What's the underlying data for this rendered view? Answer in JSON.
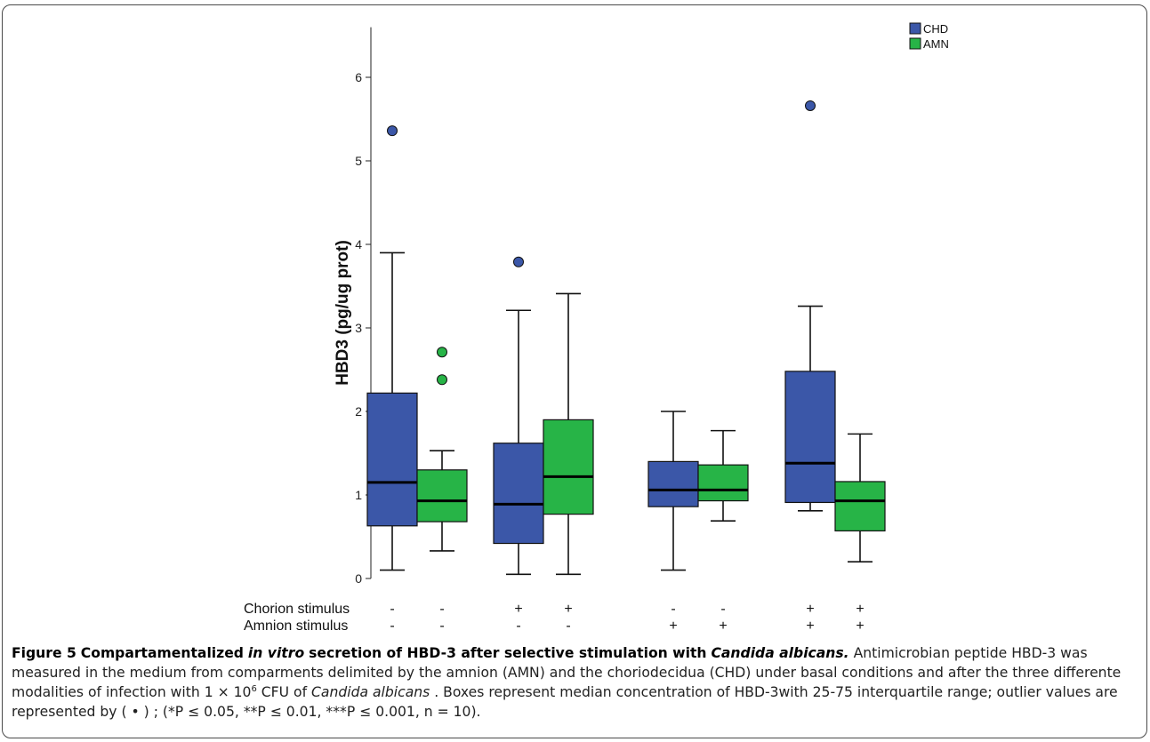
{
  "chart_data": {
    "type": "box",
    "ylabel": "HBD3 (pg/ug prot)",
    "ylim": [
      0,
      6.6
    ],
    "y_ticks": [
      0,
      1,
      2,
      3,
      4,
      5,
      6
    ],
    "grid": false,
    "legend_position": "top-right",
    "colors": {
      "CHD": "#3b57a8",
      "AMN": "#27b447"
    },
    "series": [
      {
        "name": "CHD"
      },
      {
        "name": "AMN"
      }
    ],
    "row_labels": [
      "Chorion stimulus",
      "Amnion stimulus"
    ],
    "groups": [
      {
        "chorion": "-",
        "amnion": "-",
        "boxes": [
          {
            "series": "CHD",
            "min": 0.1,
            "q1": 0.63,
            "median": 1.15,
            "q3": 2.22,
            "max": 3.9,
            "outliers": [
              5.36
            ]
          },
          {
            "series": "AMN",
            "min": 0.33,
            "q1": 0.68,
            "median": 0.93,
            "q3": 1.3,
            "max": 1.53,
            "outliers": [
              2.38,
              2.71
            ]
          }
        ]
      },
      {
        "chorion": "+",
        "amnion": "-",
        "boxes": [
          {
            "series": "CHD",
            "min": 0.05,
            "q1": 0.42,
            "median": 0.89,
            "q3": 1.62,
            "max": 3.21,
            "outliers": [
              3.79
            ]
          },
          {
            "series": "AMN",
            "min": 0.05,
            "q1": 0.77,
            "median": 1.22,
            "q3": 1.9,
            "max": 3.41,
            "outliers": []
          }
        ]
      },
      {
        "chorion": "-",
        "amnion": "+",
        "boxes": [
          {
            "series": "CHD",
            "min": 0.1,
            "q1": 0.86,
            "median": 1.06,
            "q3": 1.4,
            "max": 2.0,
            "outliers": []
          },
          {
            "series": "AMN",
            "min": 0.69,
            "q1": 0.93,
            "median": 1.06,
            "q3": 1.36,
            "max": 1.77,
            "outliers": []
          }
        ]
      },
      {
        "chorion": "+",
        "amnion": "+",
        "boxes": [
          {
            "series": "CHD",
            "min": 0.81,
            "q1": 0.91,
            "median": 1.38,
            "q3": 2.48,
            "max": 3.26,
            "outliers": [
              5.66
            ]
          },
          {
            "series": "AMN",
            "min": 0.2,
            "q1": 0.57,
            "median": 0.93,
            "q3": 1.16,
            "max": 1.73,
            "outliers": []
          }
        ]
      }
    ]
  },
  "caption": {
    "label": "Figure 5",
    "title_part1": "Compartamentalized",
    "title_italic1": "in vitro",
    "title_part2": "secretion of HBD-3 after selective stimulation with",
    "title_italic2": "Candida albicans.",
    "body_part1": "Antimicrobian peptide HBD-3 was measured in the medium from comparments delimited by the amnion (AMN) and the choriodecidua (CHD) under basal conditions and after the three differente modalities of infection with 1 × 10",
    "body_sup": "6",
    "body_part2": "CFU of",
    "body_italic": "Candida albicans",
    "body_part3": ". Boxes represent median concentration of HBD-3with 25-75 interquartile range; outlier values are represented by ( • ) ; (*P ≤ 0.05, **P ≤ 0.01, ***P ≤ 0.001, n = 10)."
  }
}
